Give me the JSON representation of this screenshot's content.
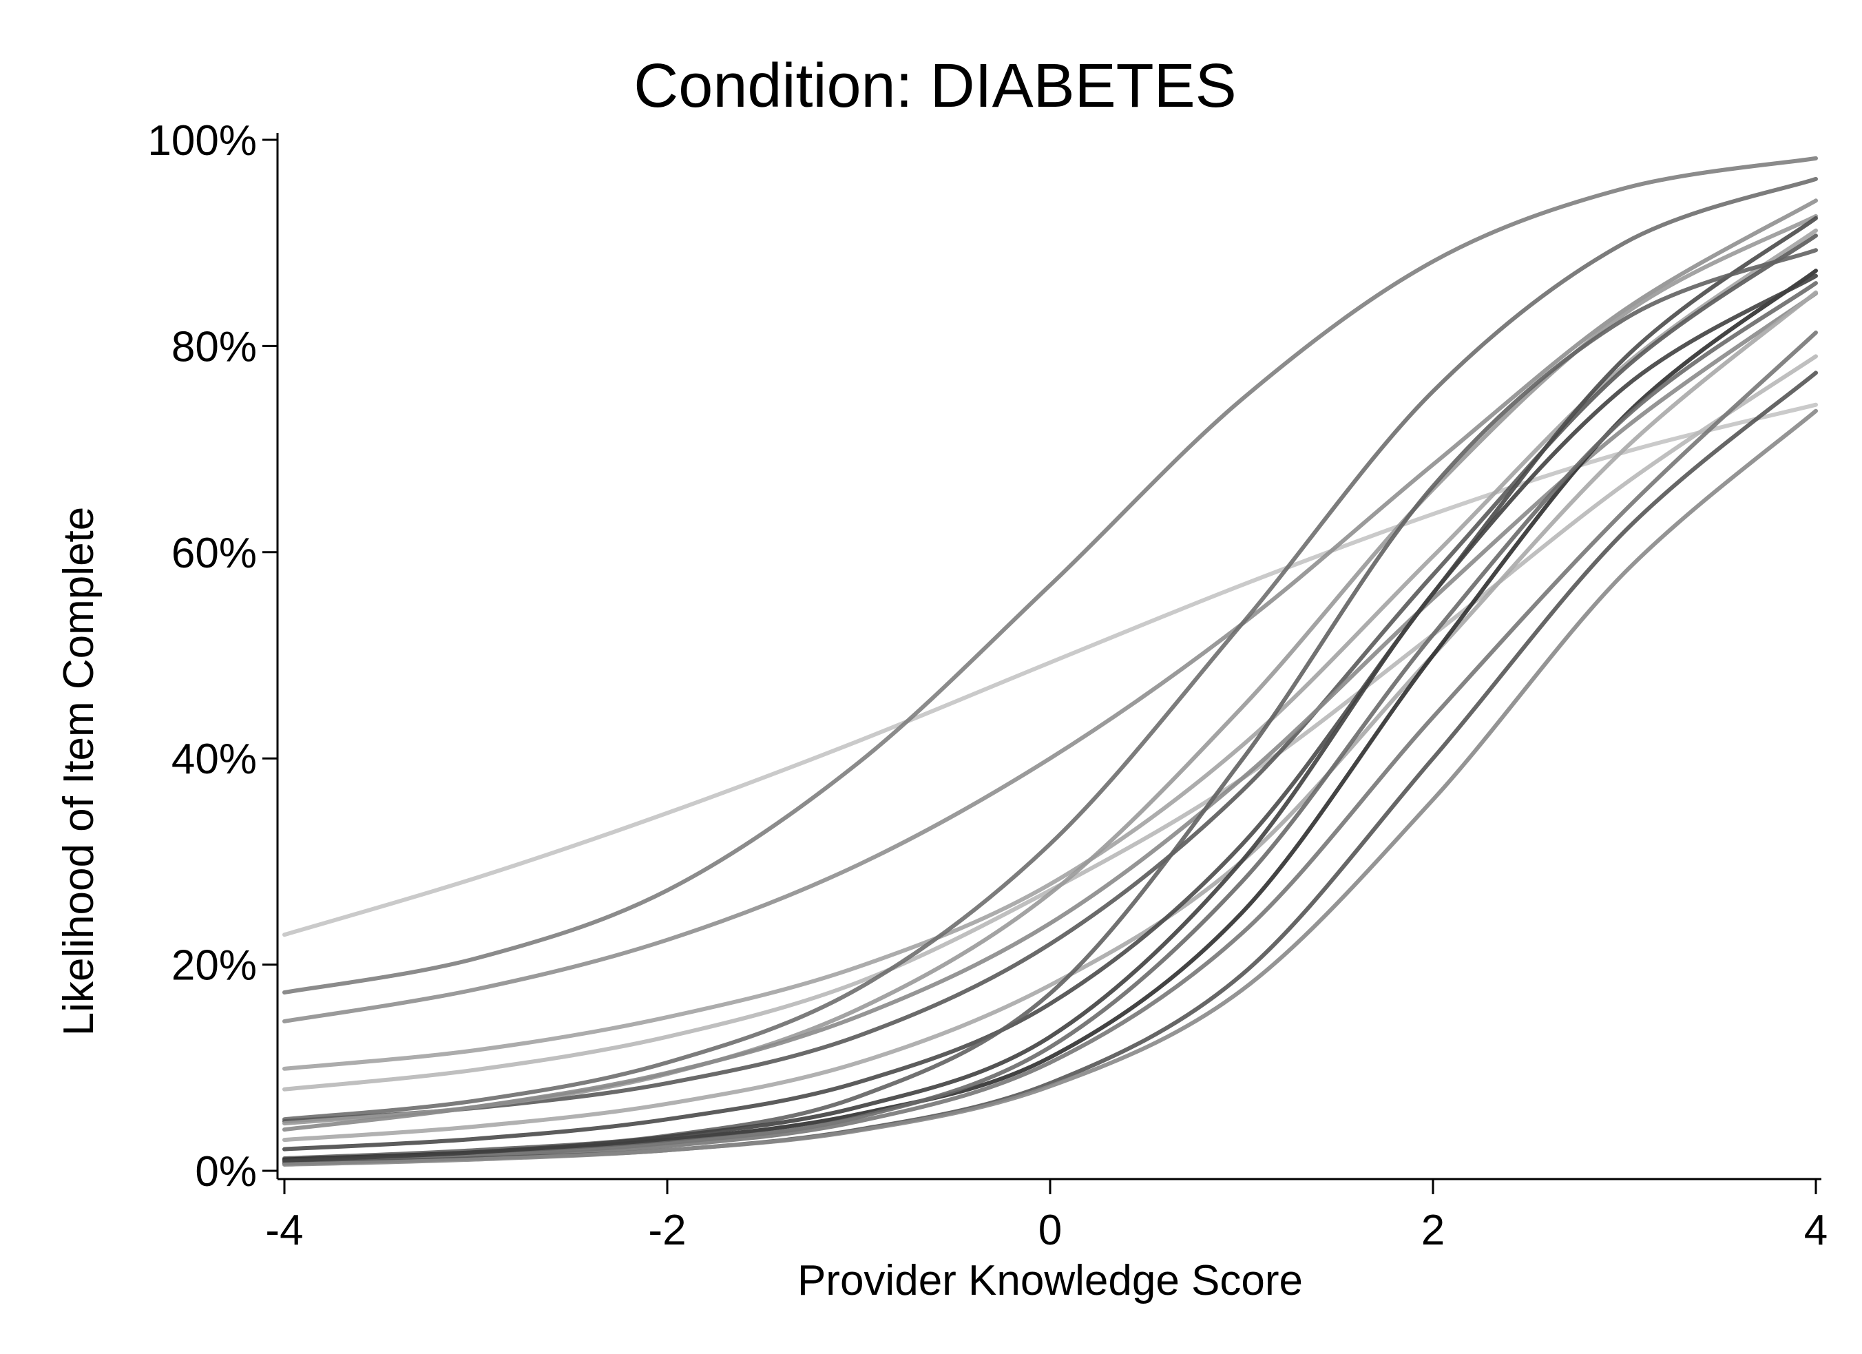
{
  "chart_data": {
    "type": "line",
    "title": "Condition: DIABETES",
    "xlabel": "Provider Knowledge Score",
    "ylabel": "Likelihood of Item Complete",
    "xlim": [
      -4,
      4
    ],
    "ylim": [
      0,
      1
    ],
    "x_ticks": [
      {
        "value": -4,
        "label": "-4"
      },
      {
        "value": -2,
        "label": "-2"
      },
      {
        "value": 0,
        "label": "0"
      },
      {
        "value": 2,
        "label": "2"
      },
      {
        "value": 4,
        "label": "4"
      }
    ],
    "y_ticks": [
      {
        "value": 0,
        "label": "0%"
      },
      {
        "value": 0.2,
        "label": "20%"
      },
      {
        "value": 0.4,
        "label": "40%"
      },
      {
        "value": 0.6,
        "label": "60%"
      },
      {
        "value": 0.8,
        "label": "80%"
      },
      {
        "value": 1,
        "label": "100%"
      }
    ],
    "grid": false,
    "legend": "none",
    "x": [
      -4,
      -3,
      -2,
      -1,
      0,
      1,
      2,
      3,
      4
    ],
    "series": [
      {
        "values": [
          0.229,
          0.284,
          0.347,
          0.417,
          0.493,
          0.568,
          0.637,
          0.697,
          0.743
        ],
        "color": "#c4c4c4"
      },
      {
        "values": [
          0.173,
          0.206,
          0.272,
          0.396,
          0.568,
          0.748,
          0.882,
          0.953,
          0.982
        ],
        "color": "#7e7e7e"
      },
      {
        "values": [
          0.145,
          0.176,
          0.224,
          0.297,
          0.4,
          0.53,
          0.685,
          0.835,
          0.941
        ],
        "color": "#8f8f8f"
      },
      {
        "values": [
          0.099,
          0.117,
          0.149,
          0.198,
          0.278,
          0.412,
          0.596,
          0.781,
          0.912
        ],
        "color": "#a3a3a3"
      },
      {
        "values": [
          0.079,
          0.098,
          0.13,
          0.183,
          0.272,
          0.38,
          0.52,
          0.666,
          0.79
        ],
        "color": "#b8b8b8"
      },
      {
        "values": [
          0.05,
          0.068,
          0.105,
          0.177,
          0.317,
          0.53,
          0.756,
          0.9,
          0.962
        ],
        "color": "#6e6e6e"
      },
      {
        "values": [
          0.048,
          0.061,
          0.085,
          0.131,
          0.22,
          0.368,
          0.578,
          0.778,
          0.907
        ],
        "color": "#5a5a5a"
      },
      {
        "values": [
          0.046,
          0.062,
          0.094,
          0.157,
          0.269,
          0.449,
          0.661,
          0.831,
          0.926
        ],
        "color": "#999999"
      },
      {
        "values": [
          0.04,
          0.062,
          0.095,
          0.15,
          0.24,
          0.38,
          0.555,
          0.72,
          0.851
        ],
        "color": "#8a8a8a"
      },
      {
        "values": [
          0.03,
          0.043,
          0.065,
          0.105,
          0.18,
          0.3,
          0.5,
          0.7,
          0.852
        ],
        "color": "#a8a8a8"
      },
      {
        "values": [
          0.021,
          0.031,
          0.05,
          0.086,
          0.162,
          0.316,
          0.56,
          0.788,
          0.924
        ],
        "color": "#4a4a4a"
      },
      {
        "values": [
          0.012,
          0.02,
          0.034,
          0.072,
          0.172,
          0.398,
          0.664,
          0.826,
          0.893
        ],
        "color": "#626262"
      },
      {
        "values": [
          0.011,
          0.018,
          0.03,
          0.055,
          0.11,
          0.25,
          0.5,
          0.732,
          0.873
        ],
        "color": "#2f2f2f"
      },
      {
        "values": [
          0.009,
          0.015,
          0.027,
          0.052,
          0.12,
          0.28,
          0.52,
          0.73,
          0.861
        ],
        "color": "#6a6a6a"
      },
      {
        "values": [
          0.008,
          0.013,
          0.024,
          0.048,
          0.105,
          0.23,
          0.44,
          0.64,
          0.813
        ],
        "color": "#777777"
      },
      {
        "values": [
          0.007,
          0.012,
          0.02,
          0.04,
          0.085,
          0.19,
          0.4,
          0.62,
          0.774
        ],
        "color": "#555555"
      },
      {
        "values": [
          0.006,
          0.011,
          0.02,
          0.039,
          0.082,
          0.175,
          0.36,
          0.58,
          0.737
        ],
        "color": "#888888"
      },
      {
        "values": [
          0.01,
          0.018,
          0.033,
          0.062,
          0.13,
          0.3,
          0.56,
          0.76,
          0.868
        ],
        "color": "#404040"
      }
    ]
  }
}
